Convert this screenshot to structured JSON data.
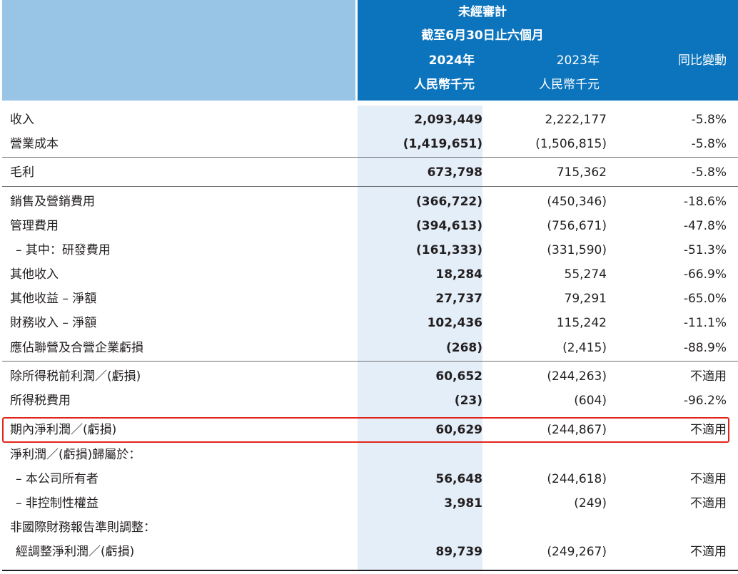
{
  "header": {
    "title": "未經審計",
    "period": "截至6月30日止六個月",
    "col_2024": "2024年",
    "col_2023": "2023年",
    "col_yoy": "同比變動",
    "unit_2024": "人民幣千元",
    "unit_2023": "人民幣千元"
  },
  "rows": [
    {
      "label": "收入",
      "v2024": "2,093,449",
      "v2023": "2,222,177",
      "yoy": "-5.8%"
    },
    {
      "label": "營業成本",
      "v2024": "(1,419,651)",
      "v2023": "(1,506,815)",
      "yoy": "-5.8%"
    },
    {
      "label": "毛利",
      "v2024": "673,798",
      "v2023": "715,362",
      "yoy": "-5.8%"
    },
    {
      "label": "銷售及營銷費用",
      "v2024": "(366,722)",
      "v2023": "(450,346)",
      "yoy": "-18.6%"
    },
    {
      "label": "管理費用",
      "v2024": "(394,613)",
      "v2023": "(756,671)",
      "yoy": "-47.8%"
    },
    {
      "label": "– 其中：研發費用",
      "v2024": "(161,333)",
      "v2023": "(331,590)",
      "yoy": "-51.3%"
    },
    {
      "label": "其他收入",
      "v2024": "18,284",
      "v2023": "55,274",
      "yoy": "-66.9%"
    },
    {
      "label": "其他收益 – 淨額",
      "v2024": "27,737",
      "v2023": "79,291",
      "yoy": "-65.0%"
    },
    {
      "label": "財務收入 – 淨額",
      "v2024": "102,436",
      "v2023": "115,242",
      "yoy": "-11.1%"
    },
    {
      "label": "應佔聯營及合營企業虧損",
      "v2024": "(268)",
      "v2023": "(2,415)",
      "yoy": "-88.9%"
    },
    {
      "label": "除所得税前利潤／(虧損)",
      "v2024": "60,652",
      "v2023": "(244,263)",
      "yoy": "不適用"
    },
    {
      "label": "所得税費用",
      "v2024": "(23)",
      "v2023": "(604)",
      "yoy": "-96.2%"
    },
    {
      "label": "期內淨利潤／(虧損)",
      "v2024": "60,629",
      "v2023": "(244,867)",
      "yoy": "不適用"
    },
    {
      "label": "淨利潤／(虧損)歸屬於：",
      "v2024": "",
      "v2023": "",
      "yoy": ""
    },
    {
      "label": "– 本公司所有者",
      "v2024": "56,648",
      "v2023": "(244,618)",
      "yoy": "不適用"
    },
    {
      "label": "– 非控制性權益",
      "v2024": "3,981",
      "v2023": "(249)",
      "yoy": "不適用"
    },
    {
      "label": "非國際財務報告準則調整：",
      "v2024": "",
      "v2023": "",
      "yoy": ""
    },
    {
      "label": "經調整淨利潤／(虧損)",
      "v2024": "89,739",
      "v2023": "(249,267)",
      "yoy": "不適用"
    }
  ],
  "colors": {
    "header_left": "#98c4e6",
    "header_right": "#0b74bd",
    "stripe": "#e4eef8",
    "highlight_border": "#e1251b"
  }
}
